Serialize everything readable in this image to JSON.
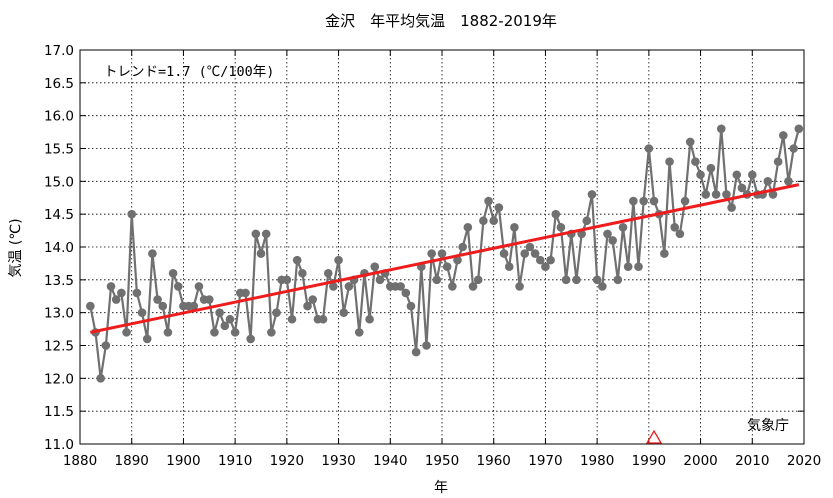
{
  "chart_data": {
    "type": "line",
    "title": "金沢　年平均気温　1882-2019年",
    "xlabel": "年",
    "ylabel": "気温 (℃)",
    "xlim": [
      1880,
      2020
    ],
    "ylim": [
      11.0,
      17.0
    ],
    "x_ticks": [
      "1880",
      "1890",
      "1900",
      "1910",
      "1920",
      "1930",
      "1940",
      "1950",
      "1960",
      "1970",
      "1980",
      "1990",
      "2000",
      "2010",
      "2020"
    ],
    "y_ticks": [
      "11.0",
      "11.5",
      "12.0",
      "12.5",
      "13.0",
      "13.5",
      "14.0",
      "14.5",
      "15.0",
      "15.5",
      "16.0",
      "16.5",
      "17.0"
    ],
    "grid": true,
    "trend_label": "トレンド=1.7 (℃/100年)",
    "source_label": "気象庁",
    "series": [
      {
        "color": "#707070",
        "x_start": 1882,
        "values": [
          13.1,
          12.7,
          12.0,
          12.5,
          13.4,
          13.2,
          13.3,
          12.7,
          14.5,
          13.3,
          13.0,
          12.6,
          13.9,
          13.2,
          13.1,
          12.7,
          13.6,
          13.4,
          13.1,
          13.1,
          13.1,
          13.4,
          13.2,
          13.2,
          12.7,
          13.0,
          12.8,
          12.9,
          12.7,
          13.3,
          13.3,
          12.6,
          14.2,
          13.9,
          14.2,
          12.7,
          13.0,
          13.5,
          13.5,
          12.9,
          13.8,
          13.6,
          13.1,
          13.2,
          12.9,
          12.9,
          13.6,
          13.4,
          13.8,
          13.0,
          13.4,
          13.5,
          12.7,
          13.6,
          12.9,
          13.7,
          13.5,
          13.6,
          13.4,
          13.4,
          13.4,
          13.3,
          13.1,
          12.4,
          13.7,
          12.5,
          13.9,
          13.5,
          13.9,
          13.7,
          13.4,
          13.8,
          14.0,
          14.3,
          13.4,
          13.5,
          14.4,
          14.7,
          14.4,
          14.6,
          13.9,
          13.7,
          14.3,
          13.4,
          13.9,
          14.0,
          13.9,
          13.8,
          13.7,
          13.8,
          14.5,
          14.3,
          13.5,
          14.2,
          13.5,
          14.2,
          14.4,
          14.8,
          13.5,
          13.4,
          14.2,
          14.1,
          13.5,
          14.3,
          13.7,
          14.7,
          13.7,
          14.7,
          15.5,
          14.7,
          14.5,
          13.9,
          15.3,
          14.3,
          14.2,
          14.7,
          15.6,
          15.3,
          15.1,
          14.8,
          15.2,
          14.8,
          15.8,
          14.8,
          14.6,
          15.1,
          14.9,
          14.8,
          15.1,
          14.8,
          14.8,
          15.0,
          14.8,
          15.3,
          15.7,
          15.0,
          15.5,
          15.8
        ]
      }
    ],
    "trend": {
      "color": "#ee1c1c",
      "start": [
        1882,
        12.7
      ],
      "end": [
        2019,
        14.95
      ]
    },
    "markers": [
      {
        "x": 1991,
        "y": 11.0,
        "shape": "triangle",
        "color": "#ee1c1c"
      }
    ]
  }
}
